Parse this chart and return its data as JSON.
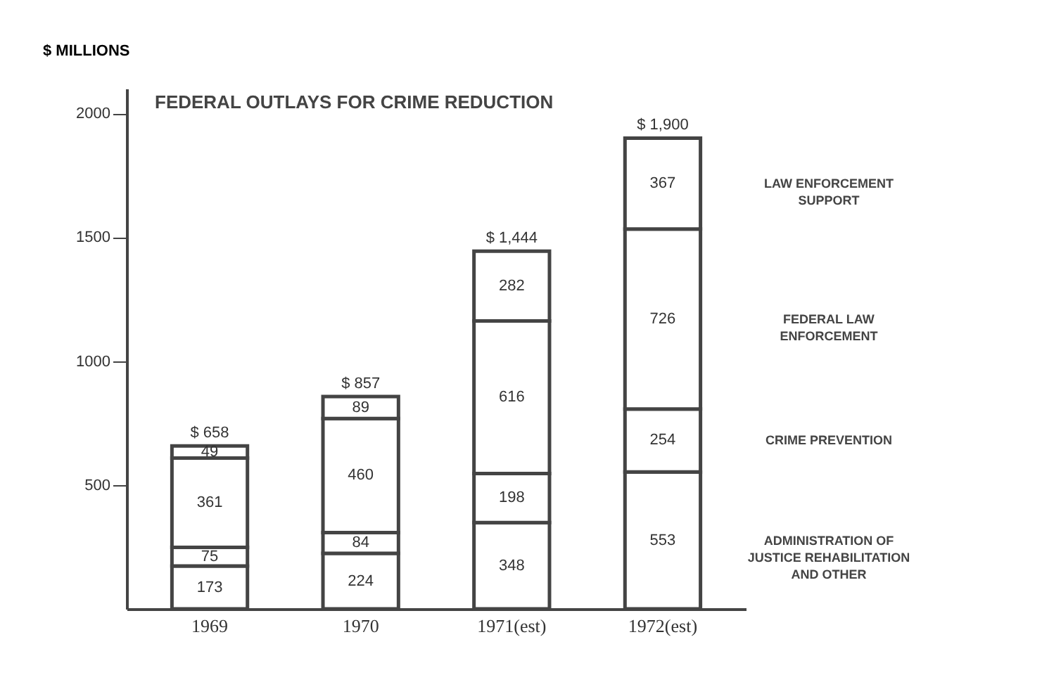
{
  "chart_data": {
    "type": "bar",
    "stacked": true,
    "title": "FEDERAL OUTLAYS FOR CRIME REDUCTION",
    "ylabel": "$ MILLIONS",
    "categories": [
      "1969",
      "1970",
      "1971(est)",
      "1972(est)"
    ],
    "series": [
      {
        "name": "ADMINISTRATION OF JUSTICE REHABILITATION AND OTHER",
        "color": "#ffffff",
        "values": [
          173,
          224,
          348,
          553
        ]
      },
      {
        "name": "CRIME PREVENTION",
        "color": "#ffffff",
        "values": [
          75,
          84,
          198,
          254
        ]
      },
      {
        "name": "FEDERAL LAW ENFORCEMENT",
        "color": "#ffffff",
        "values": [
          361,
          460,
          616,
          726
        ]
      },
      {
        "name": "LAW ENFORCEMENT SUPPORT",
        "color": "#ffffff",
        "values": [
          49,
          89,
          282,
          367
        ]
      }
    ],
    "totals": [
      "$ 658",
      "$ 857",
      "$ 1,444",
      "$ 1,900"
    ],
    "data_labels": true,
    "legend": false,
    "grid": false,
    "ylim": [
      0,
      2100
    ],
    "yticks": [
      500,
      1000,
      1500,
      2000
    ]
  }
}
